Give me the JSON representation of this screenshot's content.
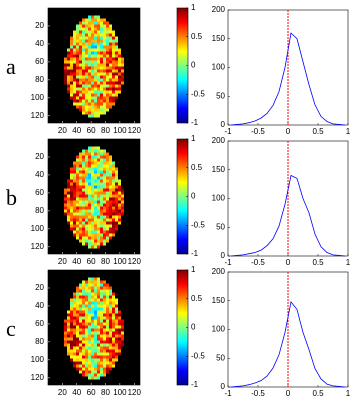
{
  "chart_data": [
    {
      "type": "image",
      "label": "a",
      "xlim": [
        0,
        128
      ],
      "ylim": [
        0,
        128
      ],
      "xticks": [
        20,
        40,
        60,
        80,
        100,
        120
      ],
      "yticks": [
        20,
        40,
        60,
        80,
        100,
        120
      ],
      "clim": [
        -1,
        1
      ],
      "cticks": [
        1,
        0.5,
        0,
        -0.5,
        -1
      ]
    },
    {
      "type": "line",
      "x": [
        -0.95,
        -0.85,
        -0.75,
        -0.65,
        -0.55,
        -0.45,
        -0.35,
        -0.25,
        -0.15,
        -0.05,
        0.05,
        0.15,
        0.25,
        0.35,
        0.45,
        0.55,
        0.65,
        0.75,
        0.85,
        0.95
      ],
      "values": [
        0,
        1,
        2,
        4,
        7,
        12,
        20,
        34,
        58,
        100,
        160,
        150,
        110,
        70,
        35,
        15,
        6,
        2,
        1,
        0
      ],
      "color": "#0000ff",
      "xlim": [
        -1,
        1
      ],
      "ylim": [
        0,
        200
      ],
      "xticks": [
        -1,
        -0.5,
        0,
        0.5,
        1
      ],
      "yticks": [
        0,
        50,
        100,
        150,
        200
      ],
      "vline": 0,
      "vline_color": "#ff0000"
    },
    {
      "type": "image",
      "label": "b",
      "xlim": [
        0,
        128
      ],
      "ylim": [
        0,
        128
      ],
      "xticks": [
        20,
        40,
        60,
        80,
        100,
        120
      ],
      "yticks": [
        20,
        40,
        60,
        80,
        100,
        120
      ],
      "clim": [
        -1,
        1
      ],
      "cticks": [
        1,
        0.5,
        0,
        -0.5,
        -1
      ]
    },
    {
      "type": "line",
      "x": [
        -0.95,
        -0.85,
        -0.75,
        -0.65,
        -0.55,
        -0.45,
        -0.35,
        -0.25,
        -0.15,
        -0.05,
        0.05,
        0.15,
        0.25,
        0.35,
        0.45,
        0.55,
        0.65,
        0.75,
        0.85,
        0.95
      ],
      "values": [
        0,
        1,
        2,
        4,
        6,
        10,
        18,
        30,
        52,
        90,
        140,
        135,
        100,
        75,
        38,
        16,
        6,
        2,
        1,
        0
      ],
      "color": "#0000ff",
      "xlim": [
        -1,
        1
      ],
      "ylim": [
        0,
        200
      ],
      "xticks": [
        -1,
        -0.5,
        0,
        0.5,
        1
      ],
      "yticks": [
        0,
        50,
        100,
        150,
        200
      ],
      "vline": 0,
      "vline_color": "#ff0000"
    },
    {
      "type": "image",
      "label": "c",
      "xlim": [
        0,
        128
      ],
      "ylim": [
        0,
        128
      ],
      "xticks": [
        20,
        40,
        60,
        80,
        100,
        120
      ],
      "yticks": [
        20,
        40,
        60,
        80,
        100,
        120
      ],
      "clim": [
        -1,
        1
      ],
      "cticks": [
        1,
        0.5,
        0,
        -0.5,
        -1
      ]
    },
    {
      "type": "line",
      "x": [
        -0.95,
        -0.85,
        -0.75,
        -0.65,
        -0.55,
        -0.45,
        -0.35,
        -0.25,
        -0.15,
        -0.05,
        0.05,
        0.15,
        0.25,
        0.35,
        0.45,
        0.55,
        0.65,
        0.75,
        0.85,
        0.95
      ],
      "values": [
        0,
        1,
        2,
        4,
        7,
        11,
        19,
        33,
        56,
        95,
        148,
        135,
        95,
        65,
        32,
        14,
        5,
        2,
        1,
        0
      ],
      "color": "#0000ff",
      "xlim": [
        -1,
        1
      ],
      "ylim": [
        0,
        200
      ],
      "xticks": [
        -1,
        -0.5,
        0,
        0.5,
        1
      ],
      "yticks": [
        0,
        50,
        100,
        150,
        200
      ],
      "vline": 0,
      "vline_color": "#ff0000"
    }
  ]
}
